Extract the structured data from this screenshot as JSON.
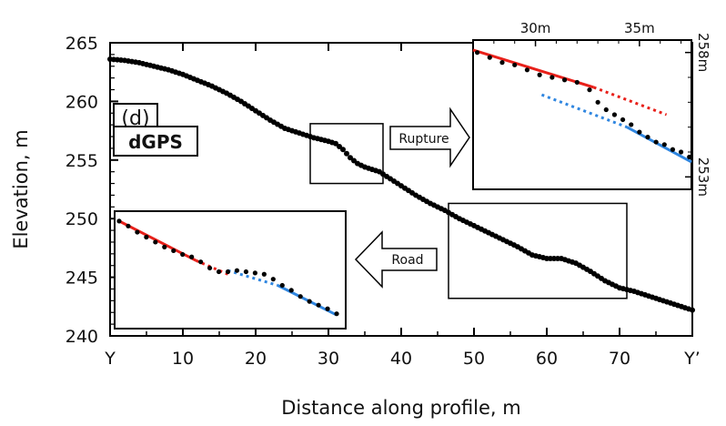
{
  "chart_data": {
    "type": "scatter",
    "title": "",
    "xlabel": "Distance along profile, m",
    "ylabel": "Elevation, m",
    "xlim": [
      0,
      80
    ],
    "ylim": [
      240,
      265
    ],
    "x_ticks": [
      {
        "value": 0,
        "label": "Y"
      },
      {
        "value": 10,
        "label": "10"
      },
      {
        "value": 20,
        "label": "20"
      },
      {
        "value": 30,
        "label": "30"
      },
      {
        "value": 40,
        "label": "40"
      },
      {
        "value": 50,
        "label": "50"
      },
      {
        "value": 60,
        "label": "60"
      },
      {
        "value": 70,
        "label": "70"
      },
      {
        "value": 80,
        "label": "Y’"
      }
    ],
    "y_ticks": [
      {
        "value": 240,
        "label": "240"
      },
      {
        "value": 245,
        "label": "245"
      },
      {
        "value": 250,
        "label": "250"
      },
      {
        "value": 255,
        "label": "255"
      },
      {
        "value": 260,
        "label": "260"
      },
      {
        "value": 265,
        "label": "265"
      }
    ],
    "panel_label": "(d)",
    "method_label": "dGPS",
    "series": [
      {
        "name": "",
        "color": "#000000",
        "points": [
          [
            0,
            263.6
          ],
          [
            2,
            263.5
          ],
          [
            4,
            263.3
          ],
          [
            6,
            263.0
          ],
          [
            8,
            262.7
          ],
          [
            10,
            262.3
          ],
          [
            12,
            261.8
          ],
          [
            14,
            261.3
          ],
          [
            16,
            260.7
          ],
          [
            18,
            260.0
          ],
          [
            20,
            259.2
          ],
          [
            22,
            258.4
          ],
          [
            24,
            257.7
          ],
          [
            26,
            257.3
          ],
          [
            28,
            256.9
          ],
          [
            30,
            256.6
          ],
          [
            31,
            256.4
          ],
          [
            32,
            255.9
          ],
          [
            33,
            255.2
          ],
          [
            34,
            254.7
          ],
          [
            35,
            254.4
          ],
          [
            36,
            254.2
          ],
          [
            37,
            254.0
          ],
          [
            38,
            253.6
          ],
          [
            40,
            252.8
          ],
          [
            42,
            252.0
          ],
          [
            44,
            251.3
          ],
          [
            46,
            250.7
          ],
          [
            48,
            250.0
          ],
          [
            50,
            249.4
          ],
          [
            52,
            248.8
          ],
          [
            54,
            248.2
          ],
          [
            56,
            247.6
          ],
          [
            58,
            246.9
          ],
          [
            60,
            246.6
          ],
          [
            62,
            246.6
          ],
          [
            64,
            246.2
          ],
          [
            66,
            245.5
          ],
          [
            68,
            244.7
          ],
          [
            70,
            244.1
          ],
          [
            72,
            243.8
          ],
          [
            74,
            243.4
          ],
          [
            76,
            243.0
          ],
          [
            78,
            242.6
          ],
          [
            80,
            242.2
          ]
        ]
      }
    ],
    "highlight_boxes": [
      {
        "name": "rupture-box",
        "x": [
          27.5,
          37.5
        ],
        "y": [
          253.0,
          258.1
        ]
      },
      {
        "name": "road-box",
        "x": [
          46.5,
          71.0
        ],
        "y": [
          243.2,
          251.3
        ]
      }
    ],
    "annotations": [
      {
        "name": "rupture-arrow",
        "label": "Rupture",
        "direction": "right"
      },
      {
        "name": "road-arrow",
        "label": "Road",
        "direction": "left"
      }
    ],
    "inset_rupture": {
      "xlim": [
        27,
        37.5
      ],
      "ylim": [
        252.5,
        258.5
      ],
      "top_ticks": [
        {
          "value": 30,
          "label": "30m"
        },
        {
          "value": 35,
          "label": "35m"
        }
      ],
      "right_ticks": [
        {
          "value": 258,
          "label": "258m"
        },
        {
          "value": 253,
          "label": "253m"
        }
      ],
      "points": [
        [
          27.2,
          258.0
        ],
        [
          27.8,
          257.8
        ],
        [
          28.4,
          257.6
        ],
        [
          29.0,
          257.5
        ],
        [
          29.6,
          257.3
        ],
        [
          30.2,
          257.1
        ],
        [
          30.8,
          257.0
        ],
        [
          31.4,
          256.9
        ],
        [
          32.0,
          256.8
        ],
        [
          32.6,
          256.5
        ],
        [
          33.0,
          256.0
        ],
        [
          33.4,
          255.7
        ],
        [
          33.8,
          255.5
        ],
        [
          34.2,
          255.3
        ],
        [
          34.6,
          255.1
        ],
        [
          35.0,
          254.8
        ],
        [
          35.4,
          254.6
        ],
        [
          35.8,
          254.4
        ],
        [
          36.2,
          254.3
        ],
        [
          36.6,
          254.1
        ],
        [
          37.0,
          254.0
        ],
        [
          37.4,
          253.8
        ]
      ],
      "fits": [
        {
          "color": "#e8201a",
          "style": "solid",
          "from": [
            27.0,
            258.1
          ],
          "to": [
            32.8,
            256.6
          ]
        },
        {
          "color": "#e8201a",
          "style": "dotted",
          "from": [
            32.8,
            256.6
          ],
          "to": [
            36.3,
            255.5
          ]
        },
        {
          "color": "#2f86e0",
          "style": "dotted",
          "from": [
            30.3,
            256.3
          ],
          "to": [
            34.4,
            255.0
          ]
        },
        {
          "color": "#2f86e0",
          "style": "solid",
          "from": [
            34.4,
            255.0
          ],
          "to": [
            37.5,
            253.6
          ]
        }
      ]
    },
    "inset_road": {
      "xlim": [
        46.0,
        71.5
      ],
      "ylim": [
        242.5,
        252.0
      ],
      "points": [
        [
          46.5,
          251.2
        ],
        [
          47.5,
          250.8
        ],
        [
          48.5,
          250.3
        ],
        [
          49.5,
          249.9
        ],
        [
          50.5,
          249.5
        ],
        [
          51.5,
          249.1
        ],
        [
          52.5,
          248.8
        ],
        [
          53.5,
          248.5
        ],
        [
          54.5,
          248.3
        ],
        [
          55.5,
          247.9
        ],
        [
          56.5,
          247.4
        ],
        [
          57.5,
          247.1
        ],
        [
          58.5,
          247.1
        ],
        [
          59.5,
          247.2
        ],
        [
          60.5,
          247.1
        ],
        [
          61.5,
          247.0
        ],
        [
          62.5,
          246.9
        ],
        [
          63.5,
          246.5
        ],
        [
          64.5,
          246.0
        ],
        [
          65.5,
          245.6
        ],
        [
          66.5,
          245.1
        ],
        [
          67.5,
          244.7
        ],
        [
          68.5,
          244.4
        ],
        [
          69.5,
          244.1
        ],
        [
          70.5,
          243.7
        ]
      ],
      "fits": [
        {
          "color": "#e8201a",
          "style": "solid",
          "from": [
            46.5,
            251.2
          ],
          "to": [
            55.0,
            248.0
          ]
        },
        {
          "color": "#e8201a",
          "style": "dotted",
          "from": [
            55.0,
            248.0
          ],
          "to": [
            58.5,
            246.9
          ]
        },
        {
          "color": "#2f86e0",
          "style": "dotted",
          "from": [
            58.5,
            247.2
          ],
          "to": [
            64.0,
            246.0
          ]
        },
        {
          "color": "#2f86e0",
          "style": "solid",
          "from": [
            64.0,
            246.0
          ],
          "to": [
            70.5,
            243.6
          ]
        }
      ]
    }
  }
}
